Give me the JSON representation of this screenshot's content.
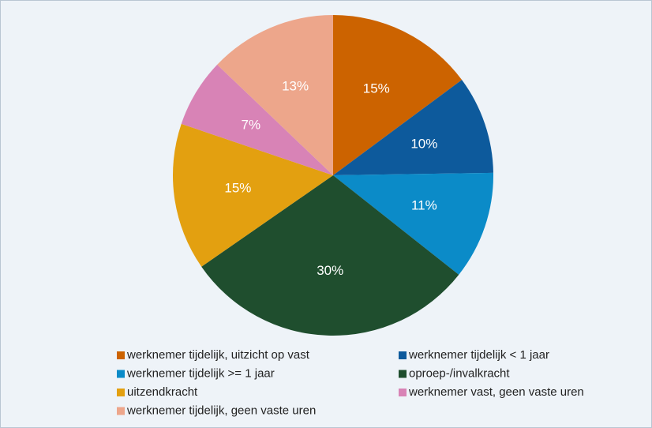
{
  "chart_data": {
    "type": "pie",
    "categories": [
      "werknemer tijdelijk, uitzicht op vast",
      "werknemer tijdelijk < 1 jaar",
      "werknemer tijdelijk >= 1 jaar",
      "oproep-/invalkracht",
      "uitzendkracht",
      "werknemer vast, geen vaste uren",
      "werknemer tijdelijk, geen vaste uren"
    ],
    "values": [
      15,
      10,
      11,
      30,
      15,
      7,
      13
    ],
    "value_labels": [
      "15%",
      "10%",
      "11%",
      "30%",
      "15%",
      "7%",
      "13%"
    ],
    "colors": [
      "#cc6300",
      "#0d5a9c",
      "#0b8bc8",
      "#1f4e2e",
      "#e3a010",
      "#d883b6",
      "#eda68b"
    ],
    "legend": "bottom"
  }
}
